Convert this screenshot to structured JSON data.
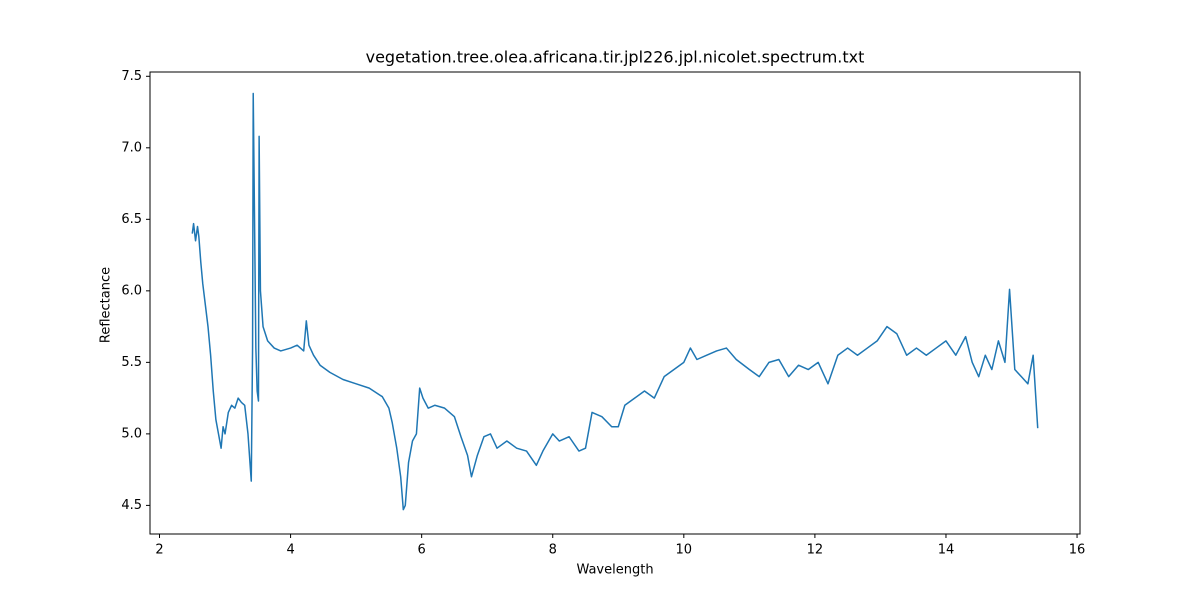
{
  "chart_data": {
    "type": "line",
    "title": "vegetation.tree.olea.africana.tir.jpl226.jpl.nicolet.spectrum.txt",
    "xlabel": "Wavelength",
    "ylabel": "Reflectance",
    "color": "#1f77b4",
    "xlim": [
      1.855,
      16.045
    ],
    "ylim": [
      4.3,
      7.53
    ],
    "xticks": [
      2,
      4,
      6,
      8,
      10,
      12,
      14,
      16
    ],
    "yticks": [
      4.5,
      {
        "value": 5,
        "label": "5.0"
      },
      5.5,
      {
        "value": 6,
        "label": "6.0"
      },
      6.5,
      {
        "value": 7,
        "label": "7.0"
      },
      7.5
    ],
    "x": [
      2.5,
      2.52,
      2.55,
      2.58,
      2.6,
      2.63,
      2.66,
      2.7,
      2.74,
      2.78,
      2.82,
      2.86,
      2.9,
      2.94,
      2.97,
      3.0,
      3.05,
      3.1,
      3.15,
      3.2,
      3.25,
      3.3,
      3.35,
      3.38,
      3.4,
      3.42,
      3.43,
      3.45,
      3.47,
      3.49,
      3.51,
      3.52,
      3.54,
      3.58,
      3.65,
      3.75,
      3.85,
      4.0,
      4.1,
      4.2,
      4.24,
      4.28,
      4.35,
      4.45,
      4.6,
      4.8,
      5.0,
      5.2,
      5.4,
      5.5,
      5.55,
      5.62,
      5.68,
      5.72,
      5.75,
      5.8,
      5.86,
      5.92,
      5.97,
      6.02,
      6.1,
      6.2,
      6.35,
      6.5,
      6.6,
      6.7,
      6.76,
      6.85,
      6.95,
      7.05,
      7.15,
      7.3,
      7.45,
      7.6,
      7.75,
      7.85,
      8.0,
      8.1,
      8.25,
      8.4,
      8.5,
      8.6,
      8.75,
      8.9,
      9.0,
      9.1,
      9.25,
      9.4,
      9.55,
      9.7,
      9.85,
      10.0,
      10.1,
      10.2,
      10.35,
      10.5,
      10.65,
      10.8,
      11.0,
      11.15,
      11.3,
      11.45,
      11.6,
      11.75,
      11.9,
      12.05,
      12.2,
      12.35,
      12.5,
      12.65,
      12.8,
      12.95,
      13.1,
      13.25,
      13.4,
      13.55,
      13.7,
      13.85,
      14.0,
      14.15,
      14.3,
      14.4,
      14.5,
      14.6,
      14.7,
      14.8,
      14.9,
      14.97,
      15.05,
      15.15,
      15.25,
      15.33,
      15.4
    ],
    "values": [
      6.4,
      6.47,
      6.35,
      6.45,
      6.38,
      6.2,
      6.05,
      5.9,
      5.75,
      5.55,
      5.3,
      5.1,
      5.0,
      4.9,
      5.05,
      5.0,
      5.15,
      5.2,
      5.18,
      5.25,
      5.22,
      5.2,
      5.0,
      4.8,
      4.67,
      5.6,
      7.38,
      6.5,
      5.6,
      5.3,
      5.23,
      7.08,
      6.0,
      5.75,
      5.65,
      5.6,
      5.58,
      5.6,
      5.62,
      5.58,
      5.79,
      5.62,
      5.55,
      5.48,
      5.43,
      5.38,
      5.35,
      5.32,
      5.26,
      5.18,
      5.08,
      4.9,
      4.7,
      4.47,
      4.5,
      4.8,
      4.95,
      5.0,
      5.32,
      5.25,
      5.18,
      5.2,
      5.18,
      5.12,
      4.98,
      4.85,
      4.7,
      4.85,
      4.98,
      5.0,
      4.9,
      4.95,
      4.9,
      4.88,
      4.78,
      4.88,
      5.0,
      4.95,
      4.98,
      4.88,
      4.9,
      5.15,
      5.12,
      5.05,
      5.05,
      5.2,
      5.25,
      5.3,
      5.25,
      5.4,
      5.45,
      5.5,
      5.6,
      5.52,
      5.55,
      5.58,
      5.6,
      5.52,
      5.45,
      5.4,
      5.5,
      5.52,
      5.4,
      5.48,
      5.45,
      5.5,
      5.35,
      5.55,
      5.6,
      5.55,
      5.6,
      5.65,
      5.75,
      5.7,
      5.55,
      5.6,
      5.55,
      5.6,
      5.65,
      5.55,
      5.68,
      5.5,
      5.4,
      5.55,
      5.45,
      5.65,
      5.5,
      6.01,
      5.45,
      5.4,
      5.35,
      5.55,
      5.04
    ]
  }
}
